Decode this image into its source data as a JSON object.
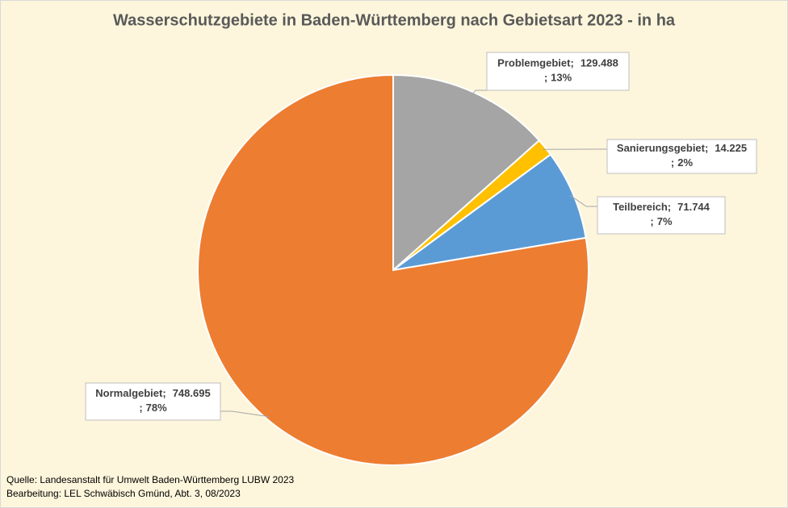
{
  "chart_data": {
    "type": "pie",
    "title": "Wasserschutzgebiete in Baden-Württemberg nach Gebietsart 2023 - in ha",
    "categories": [
      "Problemgebiet",
      "Sanierungsgebiet",
      "Teilbereich",
      "Normalgebiet"
    ],
    "values": [
      129488,
      14225,
      71744,
      748695
    ],
    "value_labels": [
      "129.488",
      "14.225",
      "71.744",
      "748.695"
    ],
    "percent_labels": [
      "13%",
      "2%",
      "7%",
      "78%"
    ],
    "label_separator": ";",
    "colors": [
      "#a5a5a5",
      "#ffc000",
      "#5b9bd5",
      "#ed7d31"
    ],
    "source": [
      "Quelle: Landesanstalt für Umwelt Baden-Württemberg LUBW 2023",
      "Bearbeitung: LEL Schwäbisch Gmünd, Abt. 3, 08/2023"
    ]
  }
}
